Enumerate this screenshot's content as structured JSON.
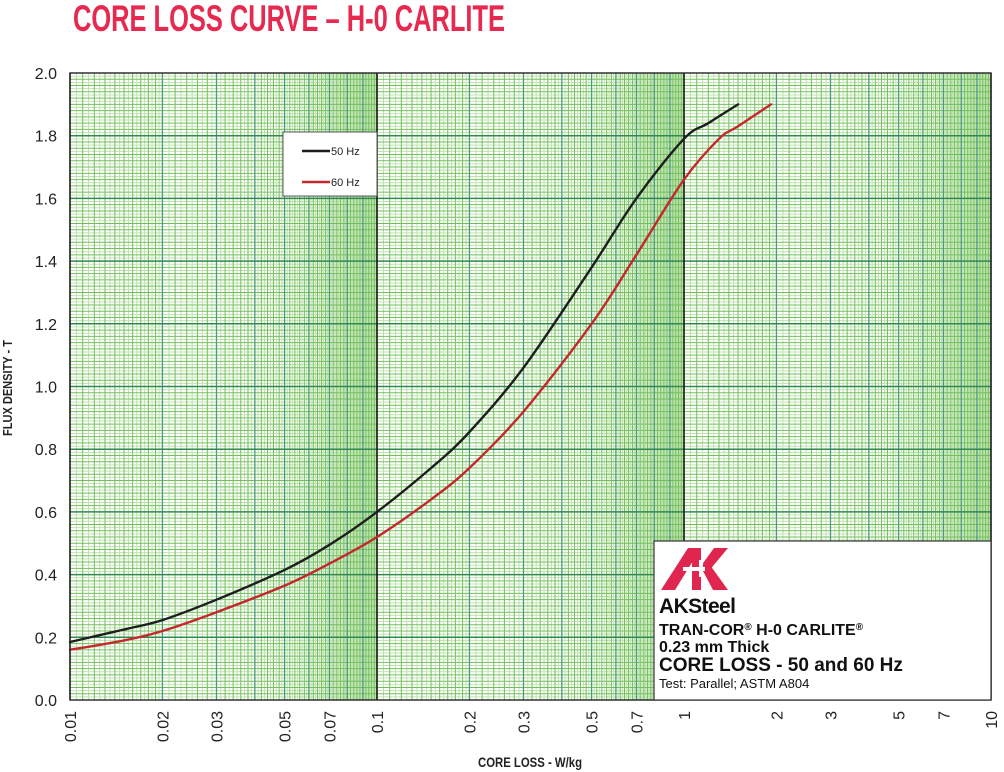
{
  "title": "CORE LOSS CURVE – H-0 CARLITE",
  "colors": {
    "title": "#e8294f",
    "logo": "#e0264e",
    "grid_pale": "#bfe3ae",
    "grid_medium": "#72c05c",
    "grid_major_vertical": "#4a9a7e",
    "grid_major_horizontal": "#2e8a4f",
    "decade_line": "#1a1a1a"
  },
  "chart_data": {
    "type": "line",
    "title": "CORE LOSS CURVE – H-0 CARLITE",
    "xlabel": "CORE LOSS - W/kg",
    "ylabel": "FLUX DENSITY - T",
    "xscale": "log",
    "xlim": [
      0.01,
      10
    ],
    "ylim": [
      0.0,
      2.0
    ],
    "xticks": [
      0.01,
      0.02,
      0.03,
      0.05,
      0.07,
      0.1,
      0.2,
      0.3,
      0.5,
      0.7,
      1,
      2,
      3,
      5,
      7,
      10
    ],
    "xtick_labels": [
      "0.01",
      "0.02",
      "0.03",
      "0.05",
      "0.07",
      "0.1",
      "0.2",
      "0.3",
      "0.5",
      "0.7",
      "1",
      "2",
      "3",
      "5",
      "7",
      "10"
    ],
    "yticks": [
      0.0,
      0.2,
      0.4,
      0.6,
      0.8,
      1.0,
      1.2,
      1.4,
      1.6,
      1.8,
      2.0
    ],
    "ytick_labels": [
      "0.0",
      "0.2",
      "0.4",
      "0.6",
      "0.8",
      "1.0",
      "1.2",
      "1.4",
      "1.6",
      "1.8",
      "2.0"
    ],
    "grid": true,
    "legend_position": "upper-left inset",
    "series": [
      {
        "name": "50 Hz",
        "color": "#1e1e1e",
        "x": [
          0.01,
          0.015,
          0.02,
          0.03,
          0.05,
          0.07,
          0.1,
          0.15,
          0.2,
          0.3,
          0.5,
          0.7,
          1.0,
          1.2,
          1.5
        ],
        "y": [
          0.185,
          0.225,
          0.255,
          0.32,
          0.415,
          0.495,
          0.6,
          0.74,
          0.855,
          1.06,
          1.38,
          1.6,
          1.79,
          1.84,
          1.9
        ]
      },
      {
        "name": "60 Hz",
        "color": "#c4282c",
        "x": [
          0.01,
          0.015,
          0.02,
          0.03,
          0.05,
          0.07,
          0.1,
          0.15,
          0.2,
          0.3,
          0.5,
          0.7,
          1.0,
          1.3,
          1.5,
          1.92
        ],
        "y": [
          0.16,
          0.19,
          0.22,
          0.28,
          0.365,
          0.435,
          0.52,
          0.64,
          0.74,
          0.92,
          1.2,
          1.42,
          1.66,
          1.79,
          1.83,
          1.9
        ]
      }
    ]
  },
  "legend": {
    "items": [
      {
        "label": "50 Hz",
        "color": "#1e1e1e"
      },
      {
        "label": "60 Hz",
        "color": "#c4282c"
      }
    ]
  },
  "info_box": {
    "brand_a": "AK",
    "brand_b": "Steel",
    "product_1": "TRAN-COR",
    "product_reg_1": "®",
    "product_2": " H-0 CARLITE",
    "product_reg_2": "®",
    "thickness": "0.23 mm Thick",
    "heading": "CORE LOSS - 50 and 60 Hz",
    "test": "Test: Parallel; ASTM A804"
  }
}
